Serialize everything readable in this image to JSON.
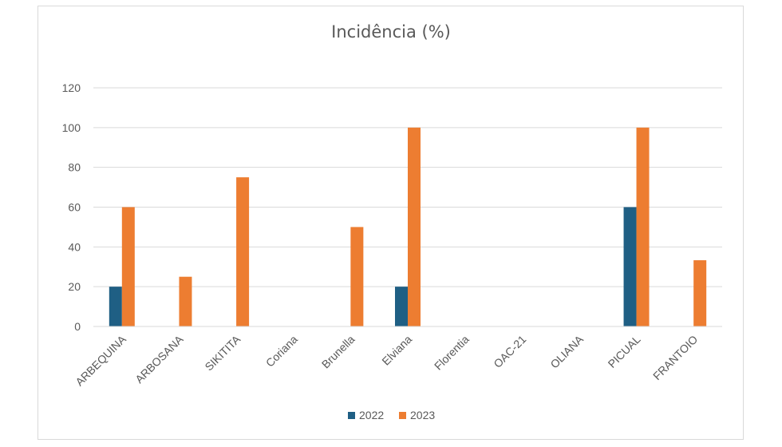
{
  "chart_data": {
    "type": "bar",
    "title": "Incidência (%)",
    "xlabel": "",
    "ylabel": "",
    "ylim": [
      0,
      120
    ],
    "yticks": [
      0,
      20,
      40,
      60,
      80,
      100,
      120
    ],
    "grid": true,
    "legend_position": "bottom",
    "categories": [
      "ARBEQUINA",
      "ARBOSANA",
      "SIKITITA",
      "Coriana",
      "Brunella",
      "Elviana",
      "Florentia",
      "OAC-21",
      "OLIANA",
      "PICUAL",
      "FRANTOIO"
    ],
    "series": [
      {
        "name": "2022",
        "color": "#1f5f84",
        "values": [
          20,
          0,
          0,
          0,
          0,
          20,
          0,
          0,
          0,
          60,
          0
        ]
      },
      {
        "name": "2023",
        "color": "#ed7d31",
        "values": [
          60,
          25,
          75,
          0,
          50,
          100,
          0,
          0,
          0,
          100,
          33.3
        ]
      }
    ]
  }
}
